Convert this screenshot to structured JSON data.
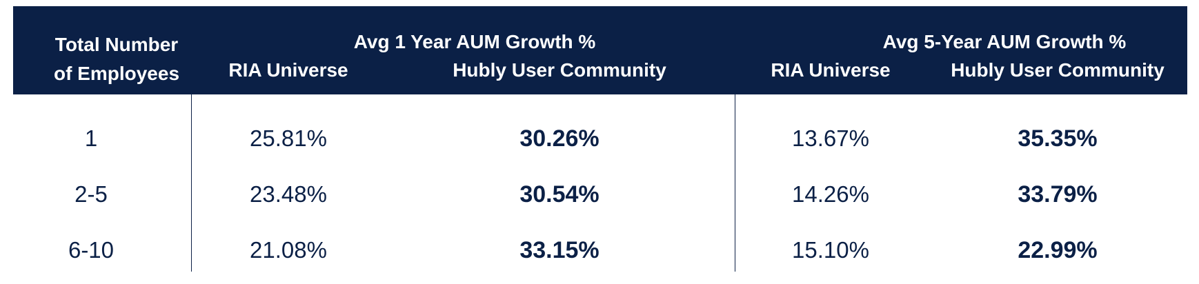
{
  "chart_data": {
    "type": "table",
    "headers": {
      "employees": [
        "Total Number",
        "of Employees"
      ],
      "group_1yr": "Avg 1 Year AUM Growth %",
      "group_5yr": "Avg 5-Year AUM Growth %",
      "ria": "RIA Universe",
      "hubly": "Hubly User Community"
    },
    "rows": [
      {
        "employees": "1",
        "ria_1yr": "25.81%",
        "hubly_1yr": "30.26%",
        "ria_5yr": "13.67%",
        "hubly_5yr": "35.35%"
      },
      {
        "employees": "2-5",
        "ria_1yr": "23.48%",
        "hubly_1yr": "30.54%",
        "ria_5yr": "14.26%",
        "hubly_5yr": "33.79%"
      },
      {
        "employees": "6-10",
        "ria_1yr": "21.08%",
        "hubly_1yr": "33.15%",
        "ria_5yr": "15.10%",
        "hubly_5yr": "22.99%"
      }
    ]
  },
  "colors": {
    "header_bg": "#0b2046",
    "header_text": "#ffffff",
    "body_text": "#0b2046"
  }
}
